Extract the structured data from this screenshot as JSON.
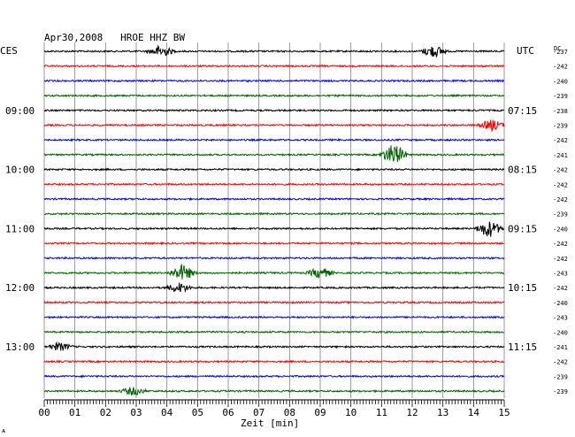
{
  "chart_data": {
    "type": "line",
    "title": "Apr30,2008   HROE HHZ BW",
    "left_label": "CES",
    "right_label": "UTC",
    "dc_label": "DC",
    "xlabel": "Zeit [min]",
    "x_ticks": [
      "00",
      "01",
      "02",
      "03",
      "04",
      "05",
      "06",
      "07",
      "08",
      "09",
      "10",
      "11",
      "12",
      "13",
      "14",
      "15"
    ],
    "xlim": [
      0,
      15
    ],
    "grid": true,
    "left_times": [
      "09:00",
      "10:00",
      "11:00",
      "12:00",
      "13:00"
    ],
    "right_times": [
      "07:15",
      "08:15",
      "09:15",
      "10:15",
      "11:15"
    ],
    "dc_values": [
      -237,
      -242,
      -240,
      -239,
      -238,
      -239,
      -242,
      -241,
      -242,
      -242,
      -242,
      -239,
      -240,
      -242,
      -242,
      -243,
      -242,
      -240,
      -243,
      -240,
      -241,
      -242,
      -239,
      -239
    ],
    "trace_colors": [
      "#000000",
      "#ff0000",
      "#0000ff",
      "#006400"
    ],
    "events": [
      {
        "row": 0,
        "minute": 3.8,
        "amp": 2.2
      },
      {
        "row": 0,
        "minute": 12.7,
        "amp": 2.2
      },
      {
        "row": 5,
        "minute": 14.6,
        "amp": 2.0
      },
      {
        "row": 7,
        "minute": 11.4,
        "amp": 4.0
      },
      {
        "row": 12,
        "minute": 14.5,
        "amp": 3.2
      },
      {
        "row": 15,
        "minute": 4.5,
        "amp": 3.0
      },
      {
        "row": 15,
        "minute": 9.0,
        "amp": 2.0
      },
      {
        "row": 16,
        "minute": 4.4,
        "amp": 1.8
      },
      {
        "row": 20,
        "minute": 0.5,
        "amp": 1.5
      },
      {
        "row": 23,
        "minute": 2.9,
        "amp": 1.5
      }
    ],
    "footer_mark": "ѧ"
  }
}
